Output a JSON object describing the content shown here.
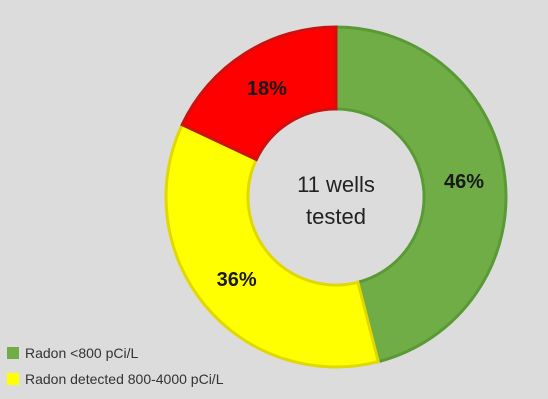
{
  "chart_data": {
    "type": "pie",
    "title": "",
    "center_label": [
      "11 wells",
      "tested"
    ],
    "slices": [
      {
        "label": "Radon <800 pCi/L",
        "value": 46,
        "display": "46%",
        "color": "#70ad47"
      },
      {
        "label": "Radon detected 800-4000 pCi/L",
        "value": 36,
        "display": "36%",
        "color": "#ffff00"
      },
      {
        "label": "",
        "value": 18,
        "display": "18%",
        "color": "#ff0000"
      }
    ]
  }
}
